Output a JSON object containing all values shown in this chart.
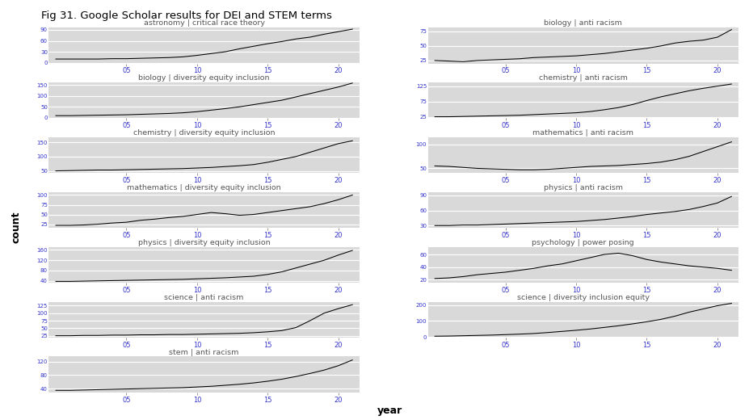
{
  "title": "Fig 31. Google Scholar results for DEI and STEM terms",
  "xlabel": "year",
  "ylabel": "count",
  "bg_color": "#D9D9D9",
  "line_color": "#000000",
  "title_color": "#555555",
  "tick_color": "#3333CC",
  "subplots": [
    {
      "title": "astronomy | critical race theory",
      "col": 0,
      "row": 0,
      "yticks": [
        0,
        30,
        60,
        90
      ],
      "ylim": [
        -2,
        97
      ],
      "y_data": [
        10,
        10,
        10,
        10,
        11,
        11,
        12,
        13,
        14,
        16,
        20,
        25,
        30,
        38,
        45,
        52,
        58,
        65,
        70,
        78,
        85,
        92
      ]
    },
    {
      "title": "biology | anti racism",
      "col": 1,
      "row": 0,
      "yticks": [
        25,
        50,
        75
      ],
      "ylim": [
        20,
        82
      ],
      "y_data": [
        25,
        24,
        23,
        25,
        26,
        27,
        28,
        30,
        31,
        32,
        33,
        35,
        37,
        40,
        43,
        46,
        50,
        55,
        58,
        60,
        65,
        78
      ]
    },
    {
      "title": "biology | diversity equity inclusion",
      "col": 0,
      "row": 1,
      "yticks": [
        0,
        50,
        100,
        150
      ],
      "ylim": [
        -2,
        162
      ],
      "y_data": [
        10,
        10,
        11,
        12,
        13,
        14,
        16,
        18,
        20,
        23,
        28,
        35,
        42,
        50,
        60,
        70,
        80,
        95,
        110,
        125,
        140,
        158
      ]
    },
    {
      "title": "chemistry | anti racism",
      "col": 1,
      "row": 1,
      "yticks": [
        25,
        75,
        125
      ],
      "ylim": [
        20,
        138
      ],
      "y_data": [
        25,
        25,
        26,
        27,
        28,
        29,
        30,
        32,
        34,
        36,
        38,
        42,
        48,
        55,
        65,
        78,
        90,
        100,
        110,
        118,
        125,
        132
      ]
    },
    {
      "title": "chemistry | diversity equity inclusion",
      "col": 0,
      "row": 2,
      "yticks": [
        50,
        100,
        150
      ],
      "ylim": [
        42,
        168
      ],
      "y_data": [
        50,
        51,
        52,
        53,
        53,
        54,
        55,
        56,
        57,
        58,
        60,
        62,
        65,
        68,
        72,
        80,
        90,
        100,
        115,
        130,
        145,
        155
      ]
    },
    {
      "title": "mathematics | anti racism",
      "col": 1,
      "row": 2,
      "yticks": [
        50,
        100
      ],
      "ylim": [
        40,
        115
      ],
      "y_data": [
        55,
        54,
        52,
        50,
        49,
        48,
        47,
        47,
        48,
        50,
        52,
        54,
        55,
        56,
        58,
        60,
        63,
        68,
        75,
        85,
        95,
        105
      ]
    },
    {
      "title": "mathematics | diversity equity inclusion",
      "col": 0,
      "row": 3,
      "yticks": [
        25,
        50,
        75,
        100
      ],
      "ylim": [
        15,
        108
      ],
      "y_data": [
        22,
        22,
        23,
        25,
        28,
        30,
        35,
        38,
        42,
        45,
        50,
        55,
        52,
        48,
        50,
        55,
        60,
        65,
        70,
        78,
        88,
        100
      ]
    },
    {
      "title": "physics | anti racism",
      "col": 1,
      "row": 3,
      "yticks": [
        30,
        60,
        90
      ],
      "ylim": [
        25,
        97
      ],
      "y_data": [
        30,
        30,
        31,
        31,
        32,
        33,
        34,
        35,
        36,
        37,
        38,
        40,
        42,
        45,
        48,
        52,
        55,
        58,
        62,
        68,
        75,
        88
      ]
    },
    {
      "title": "physics | diversity equity inclusion",
      "col": 0,
      "row": 4,
      "yticks": [
        40,
        80,
        120,
        160
      ],
      "ylim": [
        32,
        172
      ],
      "y_data": [
        38,
        38,
        39,
        40,
        41,
        42,
        43,
        44,
        45,
        46,
        48,
        50,
        52,
        55,
        58,
        65,
        75,
        90,
        105,
        120,
        140,
        158
      ]
    },
    {
      "title": "psychology | power posing",
      "col": 1,
      "row": 4,
      "yticks": [
        20,
        40,
        60
      ],
      "ylim": [
        15,
        72
      ],
      "y_data": [
        22,
        23,
        25,
        28,
        30,
        32,
        35,
        38,
        42,
        45,
        50,
        55,
        60,
        62,
        58,
        52,
        48,
        45,
        42,
        40,
        38,
        35
      ]
    },
    {
      "title": "science | anti racism",
      "col": 0,
      "row": 5,
      "yticks": [
        25,
        50,
        75,
        100,
        125
      ],
      "ylim": [
        18,
        138
      ],
      "y_data": [
        25,
        25,
        26,
        26,
        27,
        27,
        28,
        28,
        29,
        29,
        30,
        31,
        32,
        33,
        35,
        38,
        42,
        52,
        75,
        100,
        115,
        128
      ]
    },
    {
      "title": "science | diversity inclusion equity",
      "col": 1,
      "row": 5,
      "yticks": [
        0,
        100,
        200
      ],
      "ylim": [
        -5,
        220
      ],
      "y_data": [
        5,
        6,
        8,
        10,
        12,
        15,
        18,
        22,
        28,
        35,
        42,
        50,
        60,
        70,
        82,
        95,
        110,
        130,
        155,
        175,
        195,
        210
      ]
    },
    {
      "title": "stem | anti racism",
      "col": 0,
      "row": 6,
      "yticks": [
        40,
        80,
        120
      ],
      "ylim": [
        28,
        135
      ],
      "y_data": [
        35,
        35,
        36,
        37,
        38,
        39,
        40,
        41,
        42,
        43,
        45,
        47,
        50,
        53,
        57,
        62,
        68,
        76,
        85,
        95,
        108,
        125
      ]
    }
  ]
}
